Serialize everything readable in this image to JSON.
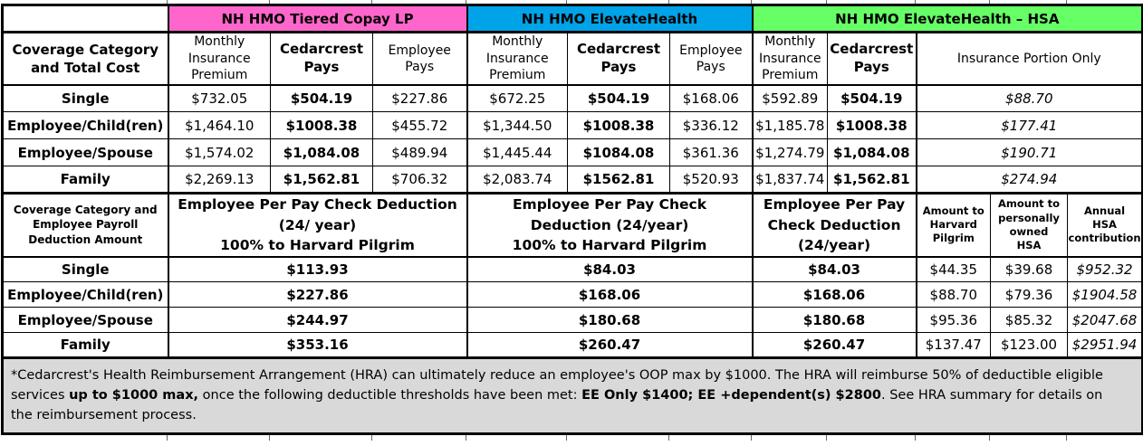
{
  "section1": {
    "corner": "Coverage Category\nand Total Cost",
    "plans": [
      {
        "name": "NH HMO Tiered Copay LP",
        "color": "#FF66CC",
        "columns": [
          "Monthly\nInsurance\nPremium",
          "Cedarcrest\nPays",
          "Employee\nPays"
        ]
      },
      {
        "name": "NH HMO ElevateHealth",
        "color": "#00A3E8",
        "columns": [
          "Monthly\nInsurance\nPremium",
          "Cedarcrest\nPays",
          "Employee\nPays"
        ]
      },
      {
        "name": "NH HMO ElevateHealth – HSA",
        "color": "#66FF66",
        "columns": [
          "Monthly\nInsurance\nPremium",
          "Cedarcrest\nPays",
          "Insurance Portion Only"
        ]
      }
    ],
    "rows": [
      {
        "label": "Single",
        "tiered": [
          "$732.05",
          "$504.19",
          "$227.86"
        ],
        "elevate": [
          "$672.25",
          "$504.19",
          "$168.06"
        ],
        "hsa": [
          "$592.89",
          "$504.19",
          "$88.70"
        ]
      },
      {
        "label": "Employee/Child(ren)",
        "tiered": [
          "$1,464.10",
          "$1008.38",
          "$455.72"
        ],
        "elevate": [
          "$1,344.50",
          "$1008.38",
          "$336.12"
        ],
        "hsa": [
          "$1,185.78",
          "$1008.38",
          "$177.41"
        ]
      },
      {
        "label": "Employee/Spouse",
        "tiered": [
          "$1,574.02",
          "$1,084.08",
          "$489.94"
        ],
        "elevate": [
          "$1,445.44",
          "$1084.08",
          "$361.36"
        ],
        "hsa": [
          "$1,274.79",
          "$1,084.08",
          "$190.71"
        ]
      },
      {
        "label": "Family",
        "tiered": [
          "$2,269.13",
          "$1,562.81",
          "$706.32"
        ],
        "elevate": [
          "$2,083.74",
          "$1562.81",
          "$520.93"
        ],
        "hsa": [
          "$1,837.74",
          "$1,562.81",
          "$274.94"
        ]
      }
    ]
  },
  "section2": {
    "corner": "Coverage Category and\nEmployee Payroll\nDeduction Amount",
    "headers": {
      "tiered": "Employee Per Pay Check Deduction\n(24/ year)\n100% to Harvard Pilgrim",
      "elevate": "Employee Per Pay Check\nDeduction (24/year)\n100% to Harvard Pilgrim",
      "hsa": "Employee Per Pay\nCheck Deduction\n(24/year)",
      "hp": "Amount to\nHarvard\nPilgrim",
      "ownhsa": "Amount to\npersonally\nowned\nHSA",
      "annual": "Annual\nHSA\ncontribution"
    },
    "rows": [
      {
        "label": "Single",
        "tiered": "$113.93",
        "elevate": "$84.03",
        "hsa": "$84.03",
        "hp": "$44.35",
        "ownhsa": "$39.68",
        "annual": "$952.32"
      },
      {
        "label": "Employee/Child(ren)",
        "tiered": "$227.86",
        "elevate": "$168.06",
        "hsa": "$168.06",
        "hp": "$88.70",
        "ownhsa": "$79.36",
        "annual": "$1904.58"
      },
      {
        "label": "Employee/Spouse",
        "tiered": "$244.97",
        "elevate": "$180.68",
        "hsa": "$180.68",
        "hp": "$95.36",
        "ownhsa": "$85.32",
        "annual": "$2047.68"
      },
      {
        "label": "Family",
        "tiered": "$353.16",
        "elevate": "$260.47",
        "hsa": "$260.47",
        "hp": "$137.47",
        "ownhsa": "$123.00",
        "annual": "$2951.94"
      }
    ]
  },
  "footnote": {
    "segments": [
      {
        "text": " *Cedarcrest's Health Reimbursement Arrangement (HRA) can ultimately reduce an employee's OOP max by $1000.  The HRA will reimburse 50% of deductible eligible services ",
        "bold": false
      },
      {
        "text": "up to $1000 max,",
        "bold": true
      },
      {
        "text": " once the following deductible thresholds have been met: ",
        "bold": false
      },
      {
        "text": "EE Only $1400; EE +dependent(s) $2800",
        "bold": true
      },
      {
        "text": ". See HRA summary for details on the reimbursement process.",
        "bold": false
      }
    ]
  }
}
